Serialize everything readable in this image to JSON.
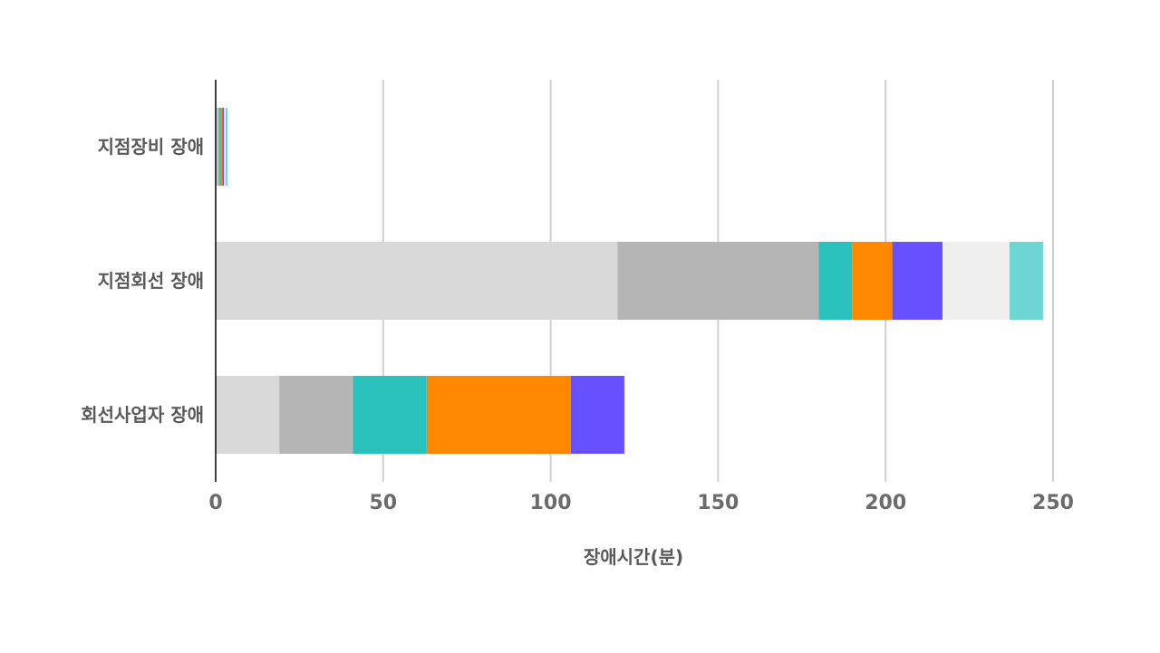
{
  "chart_data": {
    "type": "bar",
    "orientation": "horizontal",
    "stacked": true,
    "categories": [
      "지점장비 장애",
      "지점회선 장애",
      "회선사업자 장애"
    ],
    "series": [
      {
        "color": "#d9d9d9",
        "values": [
          0.5,
          120,
          19
        ]
      },
      {
        "color": "#b5b5b5",
        "values": [
          0.5,
          60,
          22
        ]
      },
      {
        "color": "#2bc1bc",
        "values": [
          0.5,
          10,
          22
        ]
      },
      {
        "color": "#ff8800",
        "values": [
          0.5,
          12,
          43
        ]
      },
      {
        "color": "#6650ff",
        "values": [
          0.5,
          15,
          16
        ]
      },
      {
        "color": "#efefef",
        "values": [
          0.5,
          20,
          0
        ]
      },
      {
        "color": "#6dd6d2",
        "values": [
          0.5,
          10,
          0
        ]
      }
    ],
    "xlabel": "장애시간(분)",
    "ylabel": "",
    "xlim": [
      0,
      250
    ],
    "xticks": [
      "0",
      "50",
      "100",
      "150",
      "200",
      "250"
    ],
    "grid": true
  }
}
